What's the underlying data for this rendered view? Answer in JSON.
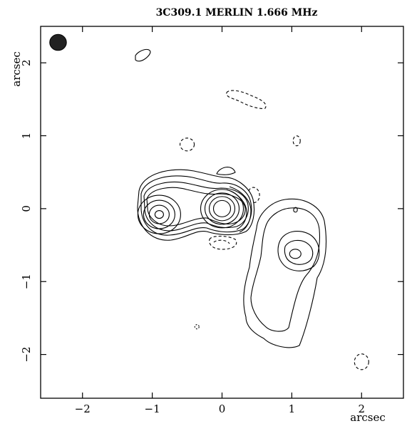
{
  "chart_data": {
    "type": "contour",
    "title": "3C309.1 MERLIN 1.666 MHz",
    "xlabel": "arcsec",
    "ylabel": "arcsec",
    "xlim": [
      -2.6,
      2.6
    ],
    "ylim": [
      -2.6,
      2.5
    ],
    "x_ticks": [
      -2,
      -1,
      0,
      1,
      2
    ],
    "y_ticks": [
      -2,
      -1,
      0,
      1,
      2
    ],
    "x_tick_labels": [
      "−2",
      "−1",
      "0",
      "1",
      "2"
    ],
    "y_tick_labels": [
      "−2",
      "−1",
      "0",
      "1",
      "2"
    ],
    "beam": {
      "x": -2.35,
      "y": 2.28,
      "major": 0.12,
      "minor": 0.1
    },
    "components": [
      {
        "name": "core",
        "x": 0.0,
        "y": 0.0,
        "contour_rings": 8
      },
      {
        "name": "jet-knot",
        "x": -0.9,
        "y": -0.08,
        "contour_rings": 6
      },
      {
        "name": "southwest-lobe",
        "x": 1.05,
        "y": -0.62,
        "contour_rings": 4
      }
    ],
    "negative_contours": [
      {
        "x": 0.3,
        "y": 1.55
      },
      {
        "x": -0.5,
        "y": 0.88
      },
      {
        "x": 1.07,
        "y": 0.93
      },
      {
        "x": 0.42,
        "y": 0.2
      },
      {
        "x": 0.0,
        "y": -0.47
      },
      {
        "x": 2.0,
        "y": -2.1
      },
      {
        "x": -0.36,
        "y": -1.62
      }
    ],
    "colors": {
      "line": "#000000",
      "background": "#ffffff"
    }
  }
}
